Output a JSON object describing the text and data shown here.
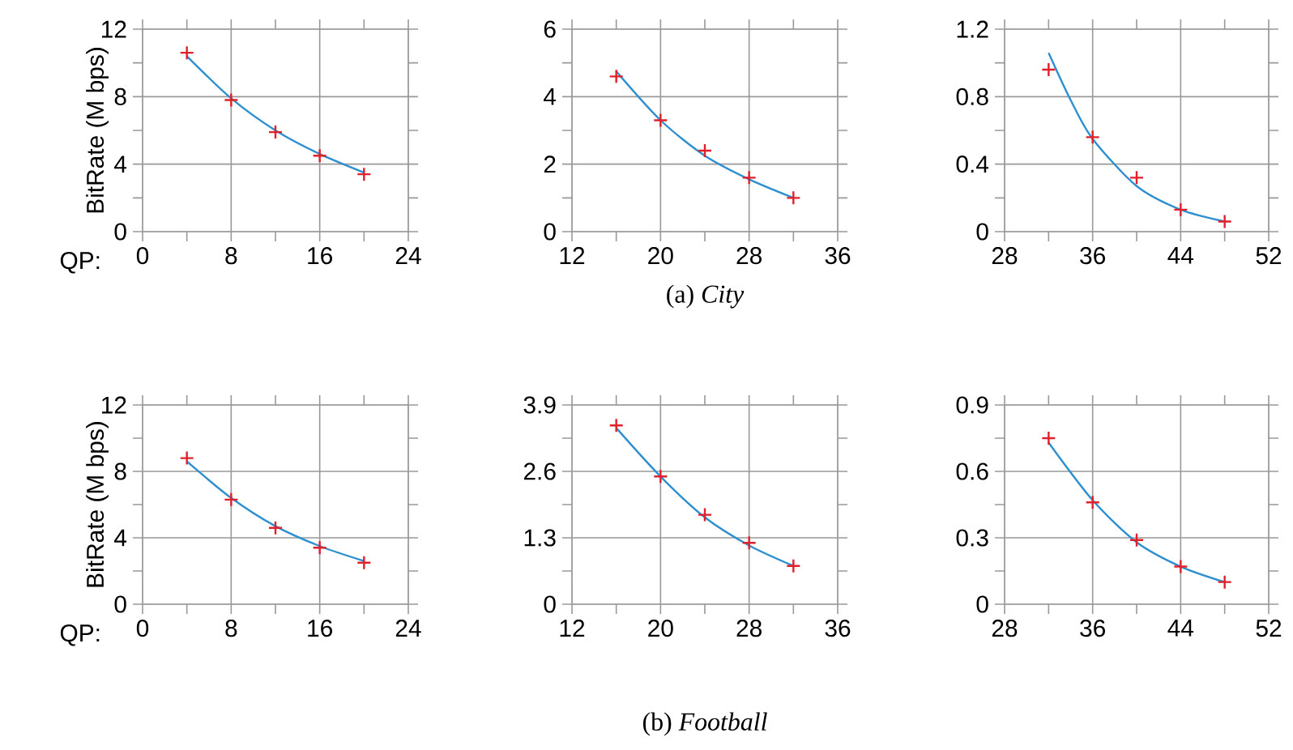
{
  "chart_data": [
    {
      "type": "scatter",
      "ylabel": "BitRate (M bps)",
      "xlabel": "QP:",
      "xlim": [
        0,
        24
      ],
      "ylim": [
        0,
        12
      ],
      "xticks": [
        0,
        8,
        16,
        24
      ],
      "yticks": [
        0,
        4,
        8,
        12
      ],
      "grid": true,
      "series": [
        {
          "marker": "cross",
          "color": "#e0202a",
          "x": [
            4,
            8,
            12,
            16,
            20
          ],
          "values": [
            10.6,
            7.8,
            5.9,
            4.5,
            3.4
          ]
        },
        {
          "type": "line",
          "marker": "none",
          "color": "#2e8fd0",
          "x": [
            4,
            8,
            12,
            16,
            20
          ],
          "values": [
            10.4,
            7.9,
            6.0,
            4.6,
            3.5
          ]
        }
      ]
    },
    {
      "type": "scatter",
      "xlim": [
        12,
        36
      ],
      "ylim": [
        0,
        6
      ],
      "xticks": [
        12,
        20,
        28,
        36
      ],
      "yticks": [
        0,
        2,
        4,
        6
      ],
      "grid": true,
      "annotations": [
        "(a) *City*"
      ],
      "series": [
        {
          "marker": "cross",
          "color": "#e0202a",
          "x": [
            16,
            20,
            24,
            28,
            32
          ],
          "values": [
            4.6,
            3.3,
            2.4,
            1.6,
            1.0
          ]
        },
        {
          "type": "line",
          "marker": "none",
          "color": "#2e8fd0",
          "x": [
            16,
            20,
            24,
            28,
            32
          ],
          "values": [
            4.75,
            3.3,
            2.25,
            1.55,
            1.0
          ]
        }
      ]
    },
    {
      "type": "scatter",
      "xlim": [
        28,
        52
      ],
      "ylim": [
        0,
        1.2
      ],
      "xticks": [
        28,
        36,
        44,
        52
      ],
      "yticks": [
        0,
        0.4,
        0.8,
        1.2
      ],
      "grid": true,
      "series": [
        {
          "marker": "cross",
          "color": "#e0202a",
          "x": [
            32,
            36,
            40,
            44,
            48
          ],
          "values": [
            0.96,
            0.56,
            0.32,
            0.13,
            0.06
          ]
        },
        {
          "type": "line",
          "marker": "none",
          "color": "#2e8fd0",
          "x": [
            32,
            34,
            36,
            40,
            44,
            48
          ],
          "values": [
            1.06,
            0.78,
            0.55,
            0.27,
            0.13,
            0.06
          ]
        }
      ]
    },
    {
      "type": "scatter",
      "ylabel": "BitRate (M bps)",
      "xlabel": "QP:",
      "xlim": [
        0,
        24
      ],
      "ylim": [
        0,
        12
      ],
      "xticks": [
        0,
        8,
        16,
        24
      ],
      "yticks": [
        0,
        4,
        8,
        12
      ],
      "grid": true,
      "series": [
        {
          "marker": "cross",
          "color": "#e0202a",
          "x": [
            4,
            8,
            12,
            16,
            20
          ],
          "values": [
            8.8,
            6.3,
            4.6,
            3.4,
            2.5
          ]
        },
        {
          "type": "line",
          "marker": "none",
          "color": "#2e8fd0",
          "x": [
            4,
            8,
            12,
            16,
            20
          ],
          "values": [
            8.6,
            6.4,
            4.7,
            3.5,
            2.6
          ]
        }
      ]
    },
    {
      "type": "scatter",
      "xlim": [
        12,
        36
      ],
      "ylim": [
        0,
        3.9
      ],
      "xticks": [
        12,
        20,
        28,
        36
      ],
      "yticks": [
        0,
        1.3,
        2.6,
        3.9
      ],
      "grid": true,
      "annotations": [
        "(b) *Football*"
      ],
      "series": [
        {
          "marker": "cross",
          "color": "#e0202a",
          "x": [
            16,
            20,
            24,
            28,
            32
          ],
          "values": [
            3.5,
            2.5,
            1.75,
            1.2,
            0.75
          ]
        },
        {
          "type": "line",
          "marker": "none",
          "color": "#2e8fd0",
          "x": [
            16,
            20,
            24,
            28,
            32
          ],
          "values": [
            3.45,
            2.5,
            1.7,
            1.15,
            0.75
          ]
        }
      ]
    },
    {
      "type": "scatter",
      "xlim": [
        28,
        52
      ],
      "ylim": [
        0,
        0.9
      ],
      "xticks": [
        28,
        36,
        44,
        52
      ],
      "yticks": [
        0,
        0.3,
        0.6,
        0.9
      ],
      "grid": true,
      "series": [
        {
          "marker": "cross",
          "color": "#e0202a",
          "x": [
            32,
            36,
            40,
            44,
            48
          ],
          "values": [
            0.75,
            0.46,
            0.29,
            0.17,
            0.1
          ]
        },
        {
          "type": "line",
          "marker": "none",
          "color": "#2e8fd0",
          "x": [
            32,
            36,
            40,
            44,
            48
          ],
          "values": [
            0.73,
            0.47,
            0.28,
            0.17,
            0.1
          ]
        }
      ]
    }
  ]
}
